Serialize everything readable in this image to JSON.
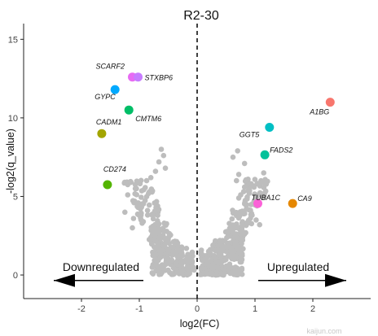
{
  "chart_data": {
    "type": "scatter",
    "title": "R2-30",
    "xlabel": "log2(FC)",
    "ylabel": "-log2(q_value)",
    "xlim": [
      -3.0,
      3.0
    ],
    "ylim": [
      -1.5,
      16.0
    ],
    "x_ticks": [
      -2,
      -1,
      0,
      1,
      2
    ],
    "y_ticks": [
      0,
      5,
      10,
      15
    ],
    "x_tick_labels": [
      "-2",
      "-1",
      "0",
      "1",
      "2"
    ],
    "y_tick_labels": [
      "0",
      "5",
      "10",
      "15"
    ],
    "threshold_line": {
      "x": 0,
      "style": "dashed"
    },
    "background_points": {
      "color": "#bdbdbd",
      "description_shape": "volcano"
    },
    "highlighted_genes": [
      {
        "name": "SCARF2",
        "x": -1.05,
        "y": 12.6,
        "color": "#e76bf3"
      },
      {
        "name": "STXBP6",
        "x": -1.05,
        "y": 12.6,
        "color": "#c77cff"
      },
      {
        "name": "GYPC",
        "x": -1.42,
        "y": 11.8,
        "color": "#00a9ff"
      },
      {
        "name": "CMTM6",
        "x": -1.18,
        "y": 10.5,
        "color": "#00be67"
      },
      {
        "name": "CADM1",
        "x": -1.65,
        "y": 9.0,
        "color": "#a3a500"
      },
      {
        "name": "CD274",
        "x": -1.55,
        "y": 5.75,
        "color": "#53b400"
      },
      {
        "name": "A1BG",
        "x": 2.3,
        "y": 11.0,
        "color": "#f8766d"
      },
      {
        "name": "GGT5",
        "x": 1.25,
        "y": 9.4,
        "color": "#00bfc4"
      },
      {
        "name": "FADS2",
        "x": 1.17,
        "y": 7.65,
        "color": "#00c19a"
      },
      {
        "name": "TUBA1C",
        "x": 1.05,
        "y": 4.55,
        "color": "#fb61d7"
      },
      {
        "name": "CA9",
        "x": 1.65,
        "y": 4.55,
        "color": "#e58700"
      }
    ],
    "annotations": [
      {
        "text": "Downregulated",
        "arrow": "left"
      },
      {
        "text": "Upregulated",
        "arrow": "right"
      }
    ]
  },
  "watermark": "kaijun.com"
}
